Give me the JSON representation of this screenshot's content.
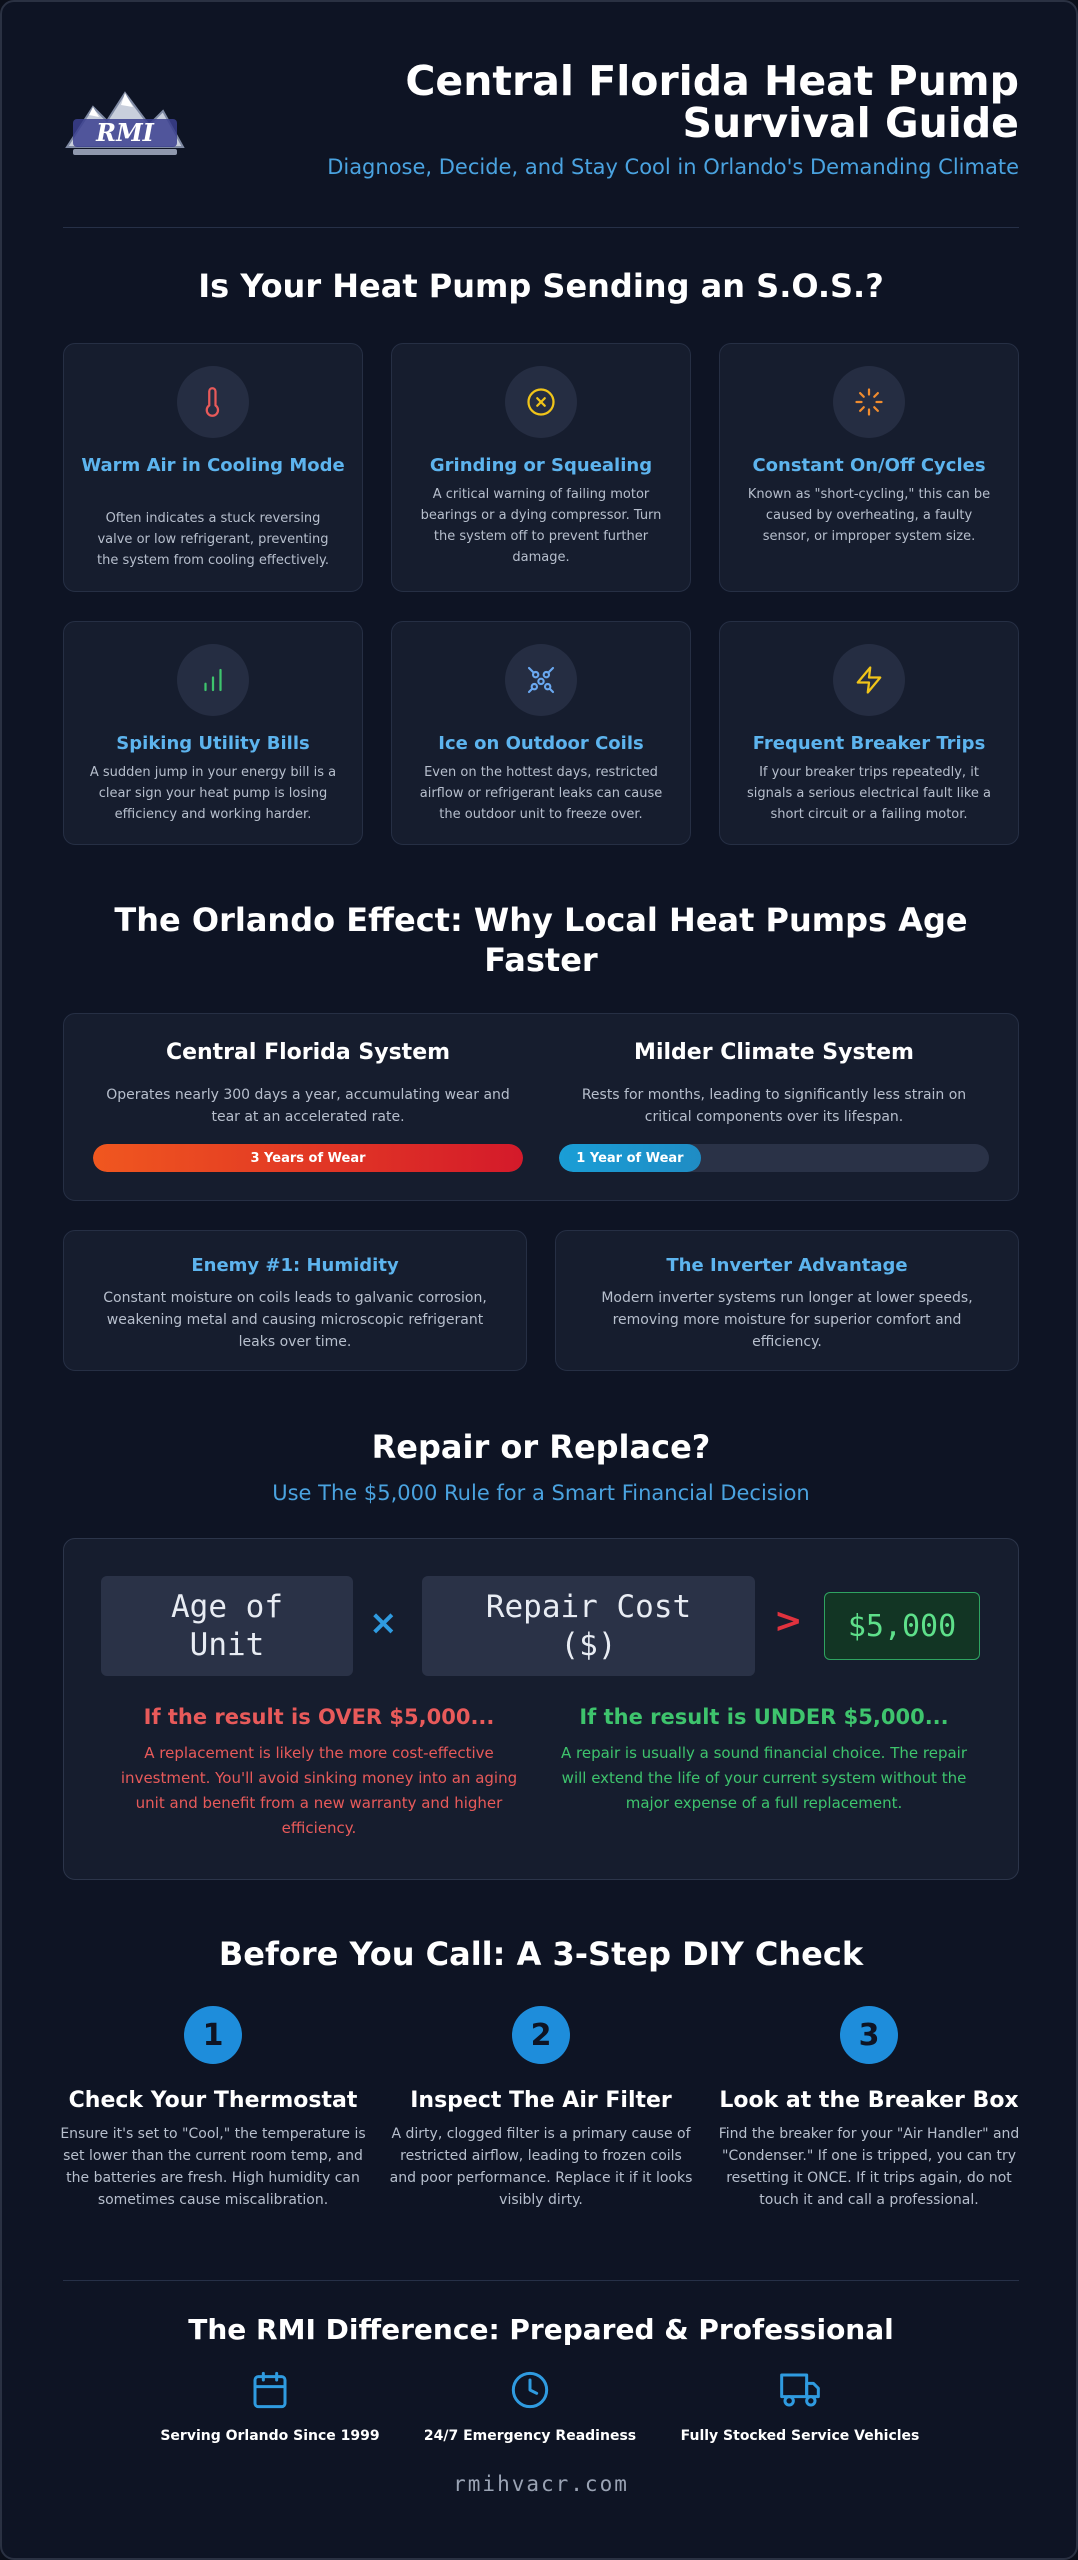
{
  "header": {
    "logo_text": "RMI",
    "title": "Central Florida Heat Pump Survival Guide",
    "subtitle": "Diagnose, Decide, and Stay Cool in Orlando's Demanding Climate"
  },
  "sos": {
    "heading": "Is Your Heat Pump Sending an S.O.S.?",
    "cards": [
      {
        "icon": "thermometer-icon",
        "title": "Warm Air in Cooling Mode",
        "text": "Often indicates a stuck reversing valve or low refrigerant, preventing the system from cooling effectively.",
        "color": "#e85a5a"
      },
      {
        "icon": "x-circle-icon",
        "title": "Grinding or Squealing",
        "text": "A critical warning of failing motor bearings or a dying compressor. Turn the system off to prevent further damage.",
        "color": "#f0c419"
      },
      {
        "icon": "loader-icon",
        "title": "Constant On/Off Cycles",
        "text": "Known as \"short-cycling,\" this can be caused by overheating, a faulty sensor, or improper system size.",
        "color": "#f08c2e"
      },
      {
        "icon": "bar-chart-icon",
        "title": "Spiking Utility Bills",
        "text": "A sudden jump in your energy bill is a clear sign your heat pump is losing efficiency and working harder.",
        "color": "#3ec46d"
      },
      {
        "icon": "snowflake-icon",
        "title": "Ice on Outdoor Coils",
        "text": "Even on the hottest days, restricted airflow or refrigerant leaks can cause the outdoor unit to freeze over.",
        "color": "#6aa8f0"
      },
      {
        "icon": "lightning-icon",
        "title": "Frequent Breaker Trips",
        "text": "If your breaker trips repeatedly, it signals a serious electrical fault like a short circuit or a failing motor.",
        "color": "#f0c419"
      }
    ]
  },
  "orlando": {
    "heading": "The Orlando Effect: Why Local Heat Pumps Age Faster",
    "florida": {
      "title": "Central Florida System",
      "text": "Operates nearly 300 days a year, accumulating wear and tear at an accelerated rate.",
      "bar_label": "3 Years of Wear",
      "bar_fraction": 1.0
    },
    "milder": {
      "title": "Milder Climate System",
      "text": "Rests for months, leading to significantly less strain on critical components over its lifespan.",
      "bar_label": "1 Year of Wear",
      "bar_fraction": 0.33
    },
    "humidity": {
      "title": "Enemy #1: Humidity",
      "text": "Constant moisture on coils leads to galvanic corrosion, weakening metal and causing microscopic refrigerant leaks over time."
    },
    "inverter": {
      "title": "The Inverter Advantage",
      "text": "Modern inverter systems run longer at lower speeds, removing more moisture for superior comfort and efficiency."
    }
  },
  "repair": {
    "heading": "Repair or Replace?",
    "subheading": "Use The $5,000 Rule for a Smart Financial Decision",
    "age_label": "Age of Unit",
    "times": "×",
    "cost_label": "Repair Cost ($)",
    "gt": ">",
    "threshold": "$5,000",
    "over_title": "If the result is OVER $5,000...",
    "over_text": "A replacement is likely the more cost-effective investment. You'll avoid sinking money into an aging unit and benefit from a new warranty and higher efficiency.",
    "under_title": "If the result is UNDER $5,000...",
    "under_text": "A repair is usually a sound financial choice. The repair will extend the life of your current system without the major expense of a full replacement."
  },
  "diy": {
    "heading": "Before You Call: A 3-Step DIY Check",
    "steps": [
      {
        "num": "1",
        "title": "Check Your Thermostat",
        "text": "Ensure it's set to \"Cool,\" the temperature is set lower than the current room temp, and the batteries are fresh. High humidity can sometimes cause miscalibration."
      },
      {
        "num": "2",
        "title": "Inspect The Air Filter",
        "text": "A dirty, clogged filter is a primary cause of restricted airflow, leading to frozen coils and poor performance. Replace it if it looks visibly dirty."
      },
      {
        "num": "3",
        "title": "Look at the Breaker Box",
        "text": "Find the breaker for your \"Air Handler\" and \"Condenser.\" If one is tripped, you can try resetting it ONCE. If it trips again, do not touch it and call a professional."
      }
    ]
  },
  "difference": {
    "heading": "The RMI Difference: Prepared & Professional",
    "items": [
      {
        "icon": "calendar-icon",
        "label": "Serving Orlando Since 1999"
      },
      {
        "icon": "clock-icon",
        "label": "24/7 Emergency Readiness"
      },
      {
        "icon": "truck-icon",
        "label": "Fully Stocked Service Vehicles"
      }
    ],
    "url": "rmihvacr.com"
  },
  "colors": {
    "accent": "#4aa3e0",
    "danger": "#e85a5a",
    "success": "#3ec46d"
  }
}
